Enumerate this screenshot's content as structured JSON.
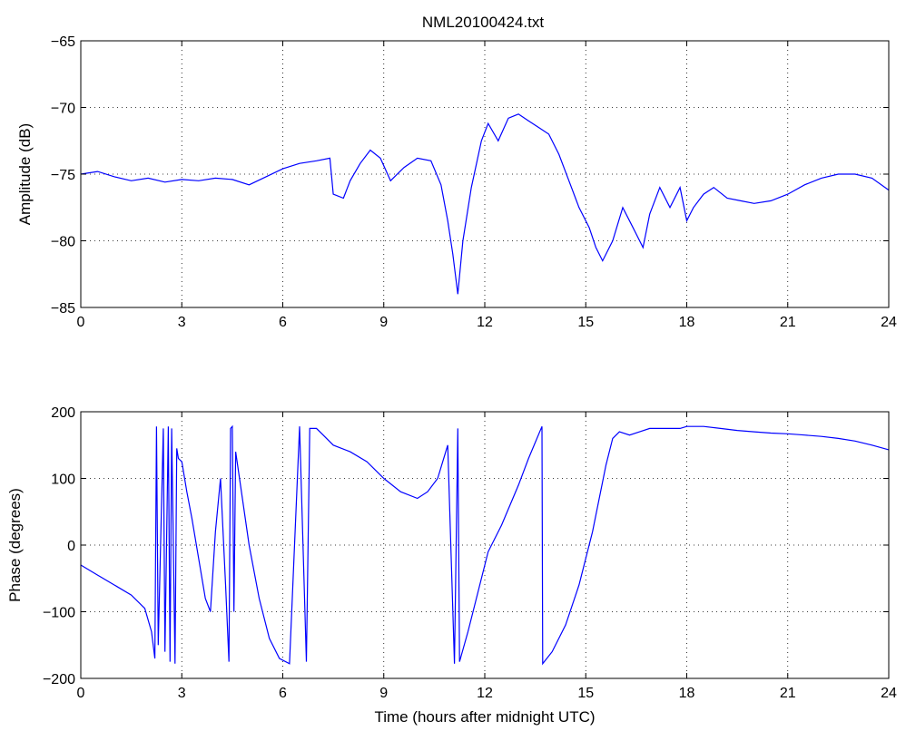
{
  "title": "NML20100424.txt",
  "line_color": "#0000ff",
  "chart_data": [
    {
      "type": "line",
      "title": "NML20100424.txt",
      "xlabel": "",
      "ylabel": "Amplitude (dB)",
      "xlim": [
        0,
        24
      ],
      "ylim": [
        -85,
        -65
      ],
      "xticks": [
        0,
        3,
        6,
        9,
        12,
        15,
        18,
        21,
        24
      ],
      "yticks": [
        -85,
        -80,
        -75,
        -70,
        -65
      ],
      "grid": true,
      "series": [
        {
          "x": [
            0,
            0.5,
            1,
            1.5,
            2,
            2.5,
            3,
            3.5,
            4,
            4.5,
            5,
            5.5,
            6,
            6.5,
            7,
            7.4,
            7.5,
            7.8,
            8,
            8.3,
            8.6,
            8.9,
            9.2,
            9.6,
            10,
            10.4,
            10.7,
            10.9,
            11.05,
            11.2,
            11.35,
            11.6,
            11.9,
            12.1,
            12.4,
            12.7,
            13,
            13.3,
            13.6,
            13.9,
            14.2,
            14.5,
            14.8,
            15.1,
            15.3,
            15.5,
            15.8,
            16.1,
            16.4,
            16.7,
            16.9,
            17.2,
            17.5,
            17.8,
            18,
            18.2,
            18.5,
            18.8,
            19.2,
            19.6,
            20,
            20.5,
            21,
            21.5,
            22,
            22.5,
            23,
            23.5,
            24
          ],
          "values": [
            -75,
            -74.8,
            -75.2,
            -75.5,
            -75.3,
            -75.6,
            -75.4,
            -75.5,
            -75.3,
            -75.4,
            -75.8,
            -75.2,
            -74.6,
            -74.2,
            -74,
            -73.8,
            -76.5,
            -76.8,
            -75.5,
            -74.2,
            -73.2,
            -73.8,
            -75.5,
            -74.5,
            -73.8,
            -74,
            -75.8,
            -78.5,
            -81,
            -84,
            -80,
            -76,
            -72.5,
            -71.2,
            -72.5,
            -70.8,
            -70.5,
            -71,
            -71.5,
            -72,
            -73.5,
            -75.5,
            -77.5,
            -79,
            -80.5,
            -81.5,
            -80,
            -77.5,
            -79,
            -80.5,
            -78,
            -76,
            -77.5,
            -76,
            -78.5,
            -77.5,
            -76.5,
            -76,
            -76.8,
            -77,
            -77.2,
            -77,
            -76.5,
            -75.8,
            -75.3,
            -75,
            -75,
            -75.3,
            -76.2
          ]
        }
      ]
    },
    {
      "type": "line",
      "title": "",
      "xlabel": "Time (hours after midnight UTC)",
      "ylabel": "Phase (degrees)",
      "xlim": [
        0,
        24
      ],
      "ylim": [
        -200,
        200
      ],
      "xticks": [
        0,
        3,
        6,
        9,
        12,
        15,
        18,
        21,
        24
      ],
      "yticks": [
        -200,
        -100,
        0,
        100,
        200
      ],
      "grid": true,
      "series": [
        {
          "x": [
            0,
            0.5,
            1,
            1.5,
            1.9,
            2.1,
            2.2,
            2.25,
            2.3,
            2.45,
            2.5,
            2.6,
            2.65,
            2.7,
            2.8,
            2.85,
            2.9,
            3,
            3.15,
            3.3,
            3.5,
            3.7,
            3.85,
            4,
            4.15,
            4.3,
            4.4,
            4.45,
            4.5,
            4.55,
            4.6,
            4.8,
            5,
            5.3,
            5.6,
            5.9,
            6.2,
            6.5,
            6.7,
            6.8,
            7,
            7.2,
            7.5,
            8,
            8.5,
            9,
            9.5,
            10,
            10.3,
            10.6,
            10.9,
            11.1,
            11.2,
            11.25,
            11.5,
            11.8,
            12.1,
            12.5,
            13,
            13.3,
            13.7,
            13.72,
            14,
            14.4,
            14.8,
            15.2,
            15.6,
            15.8,
            16,
            16.3,
            16.6,
            16.9,
            17.2,
            17.5,
            17.8,
            18,
            18.5,
            19,
            19.5,
            20,
            20.5,
            21,
            21.5,
            22,
            22.5,
            23,
            23.5,
            24
          ],
          "values": [
            -30,
            -45,
            -60,
            -75,
            -95,
            -130,
            -170,
            178,
            -150,
            175,
            -160,
            178,
            -175,
            175,
            -178,
            145,
            130,
            125,
            80,
            40,
            -20,
            -80,
            -100,
            20,
            100,
            -60,
            -175,
            175,
            178,
            -100,
            140,
            70,
            0,
            -80,
            -140,
            -170,
            -178,
            178,
            -175,
            175,
            175,
            165,
            150,
            140,
            125,
            100,
            80,
            70,
            80,
            100,
            150,
            -178,
            175,
            -175,
            -130,
            -70,
            -10,
            30,
            90,
            130,
            178,
            -178,
            -160,
            -120,
            -60,
            20,
            120,
            160,
            170,
            165,
            170,
            175,
            175,
            175,
            175,
            178,
            178,
            175,
            172,
            170,
            168,
            167,
            165,
            163,
            160,
            156,
            150,
            143
          ]
        }
      ]
    }
  ]
}
